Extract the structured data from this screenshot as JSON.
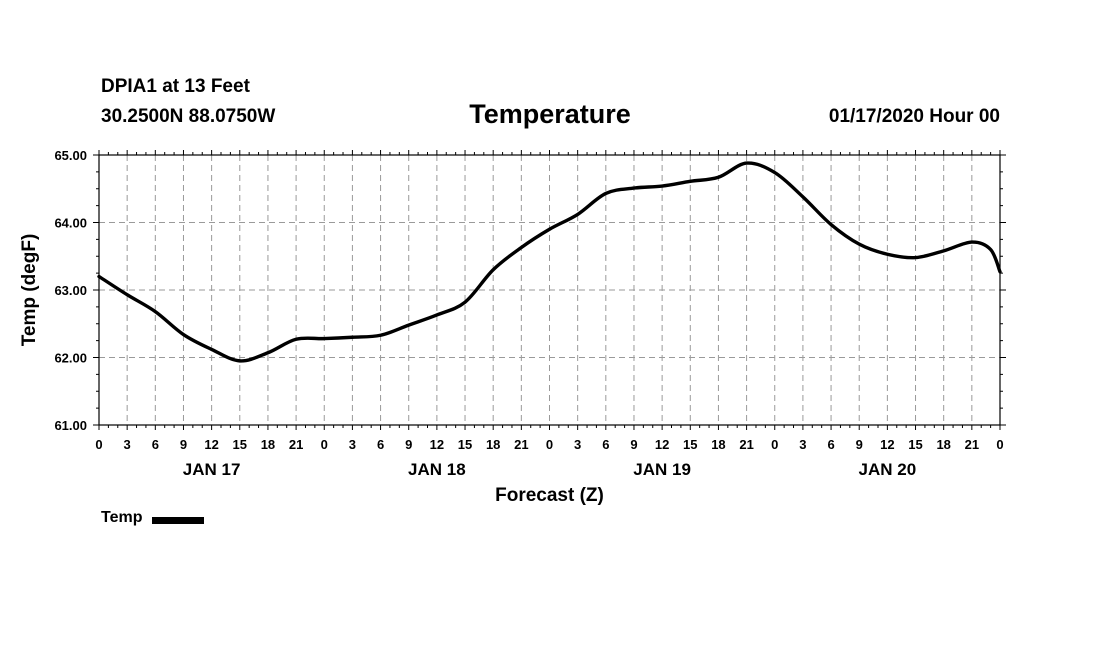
{
  "header": {
    "station": "DPIA1 at 13 Feet",
    "coords": "30.2500N 88.0750W",
    "title": "Temperature",
    "runtime": "01/17/2020 Hour 00"
  },
  "legend": {
    "label": "Temp"
  },
  "chart_data": {
    "type": "line",
    "title": "Temperature",
    "xlabel": "Forecast (Z)",
    "ylabel": "Temp (degF)",
    "ylim": [
      61.0,
      65.0
    ],
    "xlim_hours": [
      0,
      96
    ],
    "y_ticks": [
      "61.00",
      "62.00",
      "63.00",
      "64.00",
      "65.00"
    ],
    "x_tick_hours": [
      0,
      3,
      6,
      9,
      12,
      15,
      18,
      21,
      24,
      27,
      30,
      33,
      36,
      39,
      42,
      45,
      48,
      51,
      54,
      57,
      60,
      63,
      66,
      69,
      72,
      75,
      78,
      81,
      84,
      87,
      90,
      93,
      96
    ],
    "x_tick_labels": [
      "0",
      "3",
      "6",
      "9",
      "12",
      "15",
      "18",
      "21",
      "0",
      "3",
      "6",
      "9",
      "12",
      "15",
      "18",
      "21",
      "0",
      "3",
      "6",
      "9",
      "12",
      "15",
      "18",
      "21",
      "0",
      "3",
      "6",
      "9",
      "12",
      "15",
      "18",
      "21",
      "0"
    ],
    "day_labels": [
      {
        "label": "JAN 17",
        "hour": 12
      },
      {
        "label": "JAN 18",
        "hour": 36
      },
      {
        "label": "JAN 19",
        "hour": 60
      },
      {
        "label": "JAN 20",
        "hour": 84
      }
    ],
    "grid": true,
    "series": [
      {
        "name": "Temp",
        "color": "#000000",
        "x": [
          0,
          3,
          6,
          9,
          12,
          15,
          18,
          21,
          24,
          27,
          30,
          33,
          36,
          39,
          42,
          45,
          48,
          51,
          54,
          57,
          60,
          63,
          66,
          69,
          72,
          75,
          78,
          81,
          84,
          87,
          90,
          93,
          95,
          96
        ],
        "values": [
          63.2,
          62.93,
          62.68,
          62.34,
          62.12,
          61.95,
          62.07,
          62.27,
          62.28,
          62.3,
          62.33,
          62.48,
          62.63,
          62.82,
          63.3,
          63.63,
          63.9,
          64.12,
          64.43,
          64.51,
          64.54,
          64.61,
          64.67,
          64.88,
          64.74,
          64.38,
          63.97,
          63.68,
          63.53,
          63.48,
          63.58,
          63.71,
          63.6,
          63.27
        ]
      }
    ]
  }
}
